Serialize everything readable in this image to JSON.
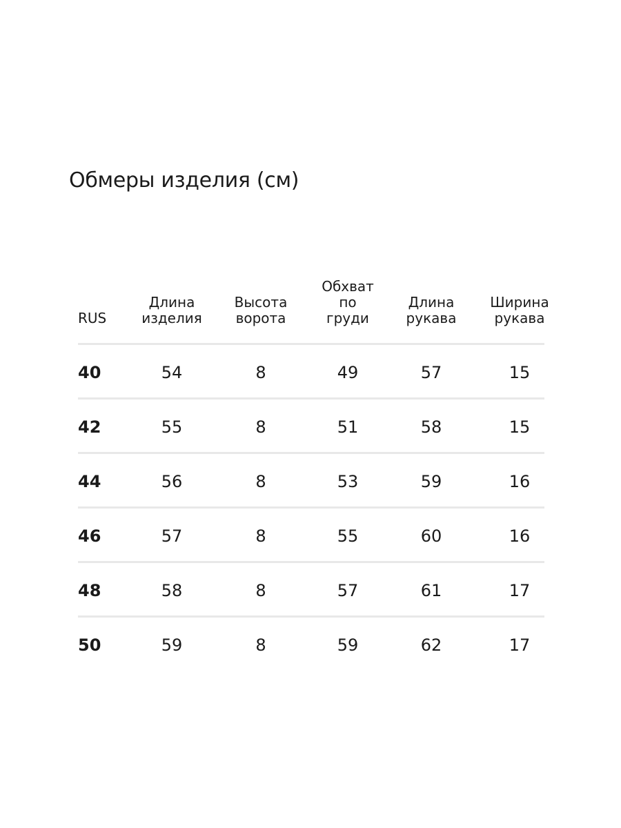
{
  "title": "Обмеры изделия (см)",
  "table": {
    "headers": [
      [
        "RUS"
      ],
      [
        "Длина",
        "изделия"
      ],
      [
        "Высота",
        "ворота"
      ],
      [
        "Обхват",
        "по",
        "груди"
      ],
      [
        "Длина",
        "рукава"
      ],
      [
        "Ширина",
        "рукава"
      ]
    ],
    "rows": [
      [
        "40",
        "54",
        "8",
        "49",
        "57",
        "15"
      ],
      [
        "42",
        "55",
        "8",
        "51",
        "58",
        "15"
      ],
      [
        "44",
        "56",
        "8",
        "53",
        "59",
        "16"
      ],
      [
        "46",
        "57",
        "8",
        "55",
        "60",
        "16"
      ],
      [
        "48",
        "58",
        "8",
        "57",
        "61",
        "17"
      ],
      [
        "50",
        "59",
        "8",
        "59",
        "62",
        "17"
      ]
    ]
  }
}
